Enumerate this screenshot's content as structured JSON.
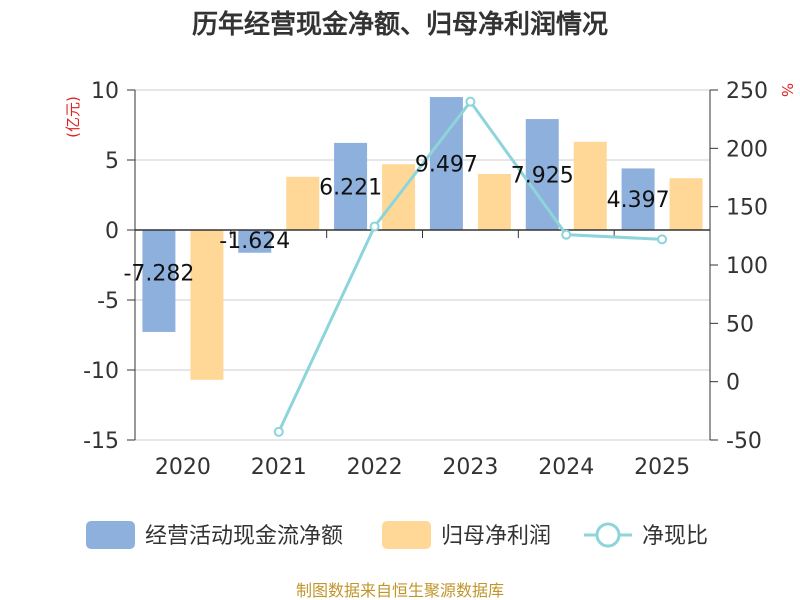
{
  "chart_data": {
    "type": "bar",
    "title": "历年经营现金净额、归母净利润情况",
    "categories": [
      "2020",
      "2021",
      "2022",
      "2023",
      "2024",
      "2025"
    ],
    "series": [
      {
        "name": "经营活动现金流净额",
        "type": "bar",
        "axis": "left",
        "color": "#8eb0dc",
        "values": [
          -7.282,
          -1.624,
          6.221,
          9.497,
          7.925,
          4.397
        ],
        "labels": [
          "-7.282",
          "-1.624",
          "6.221",
          "9.497",
          "7.925",
          "4.397"
        ]
      },
      {
        "name": "归母净利润",
        "type": "bar",
        "axis": "left",
        "color": "#ffd898",
        "values": [
          -10.7,
          3.8,
          4.7,
          4.0,
          6.3,
          3.7
        ]
      },
      {
        "name": "净现比",
        "type": "line",
        "axis": "right",
        "color": "#8dd5db",
        "values": [
          null,
          -43,
          133,
          240,
          126,
          122
        ]
      }
    ],
    "left_axis": {
      "unit": "(亿元)",
      "ylim": [
        -15,
        10
      ],
      "ticks": [
        10,
        5,
        0,
        -5,
        -10,
        -15
      ],
      "tick_labels": [
        "10",
        "5",
        "0",
        "-5",
        "-10",
        "-15"
      ]
    },
    "right_axis": {
      "unit": "%",
      "ylim": [
        -50,
        250
      ],
      "ticks": [
        250,
        200,
        150,
        100,
        50,
        0,
        -50
      ],
      "tick_labels": [
        "250",
        "200",
        "150",
        "100",
        "50",
        "0",
        "-50"
      ]
    },
    "grid": true,
    "legend_position": "bottom",
    "source": "制图数据来自恒生聚源数据库"
  }
}
